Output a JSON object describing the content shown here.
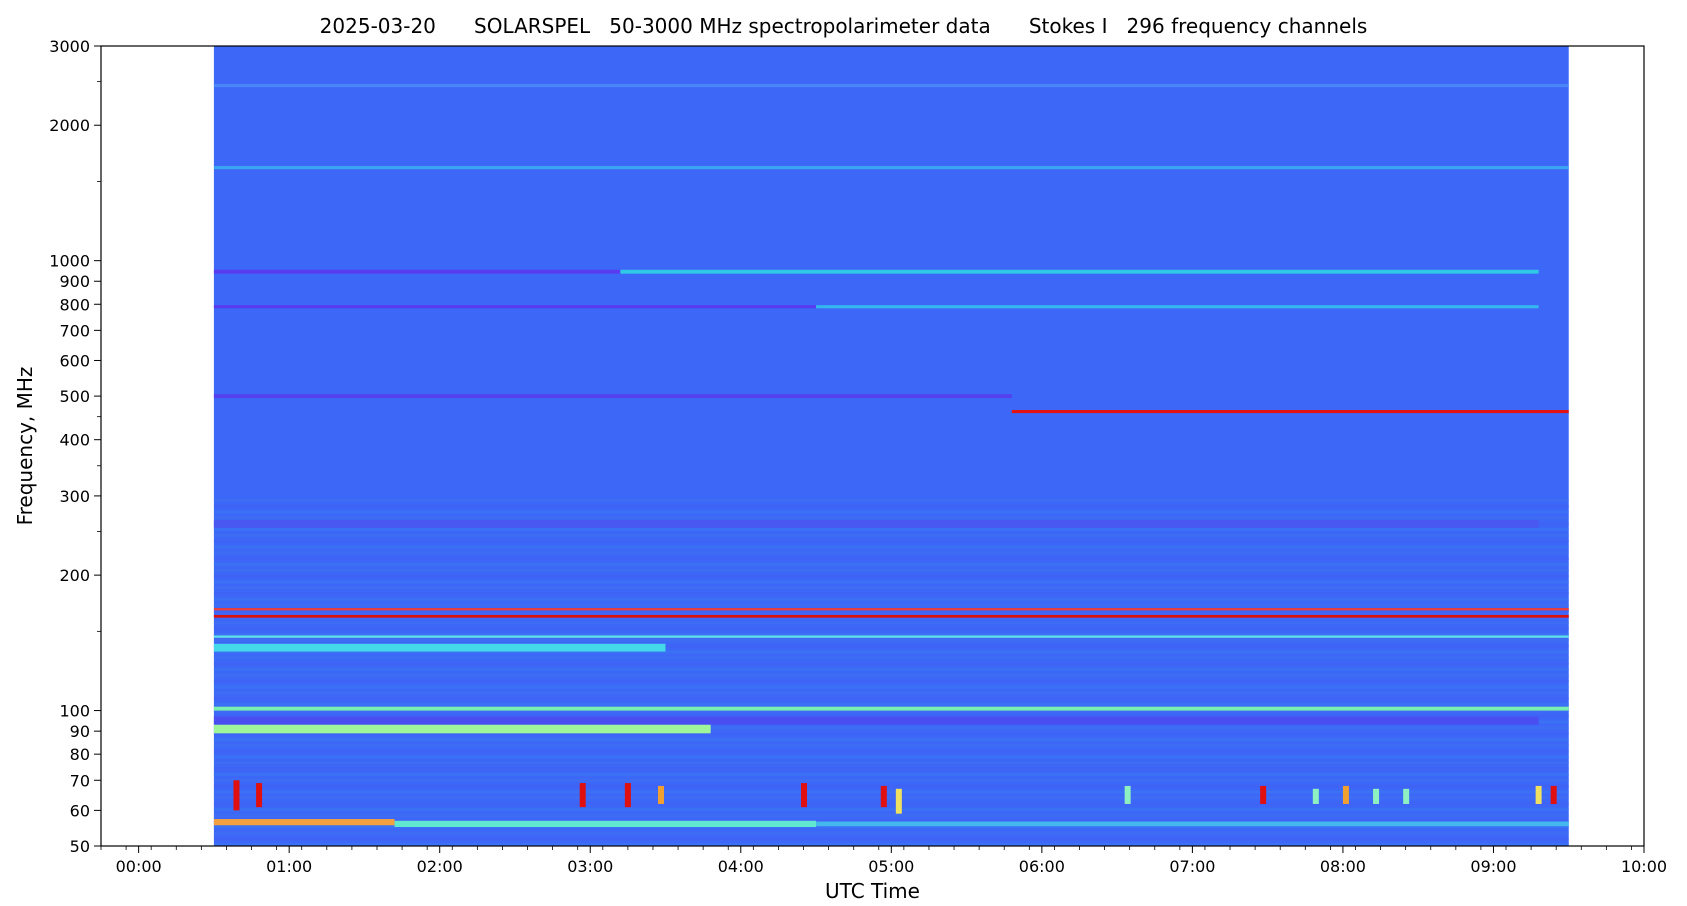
{
  "chart_data": {
    "type": "heatmap",
    "title": "2025-03-20      SOLARSPEL   50-3000 MHz spectropolarimeter data      Stokes I   296 frequency channels",
    "xlabel": "UTC Time",
    "ylabel": "Frequency, MHz",
    "x_range_hours": [
      -0.25,
      10.0
    ],
    "y_range_mhz": [
      50,
      3000
    ],
    "y_scale": "log",
    "x_ticks": [
      "00:00",
      "01:00",
      "02:00",
      "03:00",
      "04:00",
      "05:00",
      "06:00",
      "07:00",
      "08:00",
      "09:00",
      "10:00"
    ],
    "x_tick_hours": [
      0,
      1,
      2,
      3,
      4,
      5,
      6,
      7,
      8,
      9,
      10
    ],
    "y_ticks": [
      50,
      60,
      70,
      80,
      90,
      100,
      200,
      300,
      400,
      500,
      600,
      700,
      800,
      900,
      1000,
      2000,
      3000
    ],
    "y_tick_labels": [
      "50",
      "60",
      "70",
      "80",
      "90",
      "100",
      "200",
      "300",
      "400",
      "500",
      "600",
      "700",
      "800",
      "900",
      "1000",
      "2000",
      "3000"
    ],
    "data_extent_hours": [
      0.5,
      9.5
    ],
    "background_color": "#3d67f7",
    "bands": [
      {
        "freq_mhz": 2450,
        "t": [
          0.5,
          9.5
        ],
        "color": "#4a86f5",
        "width_mhz_frac": 0.008
      },
      {
        "freq_mhz": 1610,
        "t": [
          0.5,
          9.5
        ],
        "color": "#3aa6f0",
        "width_mhz_frac": 0.008
      },
      {
        "freq_mhz": 945,
        "t": [
          0.5,
          3.2
        ],
        "color": "#5a3cf0",
        "width_mhz_frac": 0.01
      },
      {
        "freq_mhz": 945,
        "t": [
          3.2,
          9.3
        ],
        "color": "#31c8e8",
        "width_mhz_frac": 0.01
      },
      {
        "freq_mhz": 790,
        "t": [
          0.5,
          4.5
        ],
        "color": "#5a3cf0",
        "width_mhz_frac": 0.008
      },
      {
        "freq_mhz": 790,
        "t": [
          4.5,
          9.3
        ],
        "color": "#35b8ee",
        "width_mhz_frac": 0.008
      },
      {
        "freq_mhz": 500,
        "t": [
          0.5,
          5.8
        ],
        "color": "#5640ee",
        "width_mhz_frac": 0.01
      },
      {
        "freq_mhz": 462,
        "t": [
          5.8,
          9.5
        ],
        "color": "#e01414",
        "width_mhz_frac": 0.008
      },
      {
        "freq_mhz": 260,
        "t": [
          0.5,
          9.3
        ],
        "color": "#4a58f2",
        "width_mhz_frac": 0.02
      },
      {
        "freq_mhz": 168,
        "t": [
          0.5,
          9.5
        ],
        "color": "#e84040",
        "width_mhz_frac": 0.006
      },
      {
        "freq_mhz": 162,
        "t": [
          0.5,
          9.5
        ],
        "color": "#dd1010",
        "width_mhz_frac": 0.007
      },
      {
        "freq_mhz": 146,
        "t": [
          0.5,
          9.5
        ],
        "color": "#5fe0e8",
        "width_mhz_frac": 0.006
      },
      {
        "freq_mhz": 138,
        "t": [
          0.5,
          3.5
        ],
        "color": "#44d8e8",
        "width_mhz_frac": 0.02
      },
      {
        "freq_mhz": 101,
        "t": [
          0.5,
          9.5
        ],
        "color": "#7af0b0",
        "width_mhz_frac": 0.01
      },
      {
        "freq_mhz": 91,
        "t": [
          0.5,
          3.8
        ],
        "color": "#9ff59a",
        "width_mhz_frac": 0.022
      },
      {
        "freq_mhz": 95,
        "t": [
          0.5,
          9.3
        ],
        "color": "#4a4ef0",
        "width_mhz_frac": 0.02
      },
      {
        "freq_mhz": 56.5,
        "t": [
          0.5,
          1.7
        ],
        "color": "#f2a040",
        "width_mhz_frac": 0.016
      },
      {
        "freq_mhz": 56,
        "t": [
          1.7,
          4.5
        ],
        "color": "#60e8d0",
        "width_mhz_frac": 0.016
      },
      {
        "freq_mhz": 56,
        "t": [
          4.5,
          9.5
        ],
        "color": "#45b8ee",
        "width_mhz_frac": 0.012
      }
    ],
    "bursts": [
      {
        "t": 0.65,
        "f": [
          60,
          70
        ],
        "color": "#e01010"
      },
      {
        "t": 0.8,
        "f": [
          61,
          69
        ],
        "color": "#e01010"
      },
      {
        "t": 2.95,
        "f": [
          61,
          69
        ],
        "color": "#e01010"
      },
      {
        "t": 3.25,
        "f": [
          61,
          69
        ],
        "color": "#e01010"
      },
      {
        "t": 3.47,
        "f": [
          62,
          68
        ],
        "color": "#f0a030"
      },
      {
        "t": 4.42,
        "f": [
          61,
          69
        ],
        "color": "#e01010"
      },
      {
        "t": 4.95,
        "f": [
          61,
          68
        ],
        "color": "#e01010"
      },
      {
        "t": 5.05,
        "f": [
          59,
          67
        ],
        "color": "#f0e060"
      },
      {
        "t": 6.57,
        "f": [
          62,
          68
        ],
        "color": "#8ef0c0"
      },
      {
        "t": 7.47,
        "f": [
          62,
          68
        ],
        "color": "#e01010"
      },
      {
        "t": 7.82,
        "f": [
          62,
          67
        ],
        "color": "#8ef0c0"
      },
      {
        "t": 8.02,
        "f": [
          62,
          68
        ],
        "color": "#f0a030"
      },
      {
        "t": 8.22,
        "f": [
          62,
          67
        ],
        "color": "#8ef0c0"
      },
      {
        "t": 8.42,
        "f": [
          62,
          67
        ],
        "color": "#8ef0c0"
      },
      {
        "t": 9.3,
        "f": [
          62,
          68
        ],
        "color": "#f0e060"
      },
      {
        "t": 9.4,
        "f": [
          62,
          68
        ],
        "color": "#e01010"
      }
    ],
    "grid": false,
    "legend": "none"
  }
}
